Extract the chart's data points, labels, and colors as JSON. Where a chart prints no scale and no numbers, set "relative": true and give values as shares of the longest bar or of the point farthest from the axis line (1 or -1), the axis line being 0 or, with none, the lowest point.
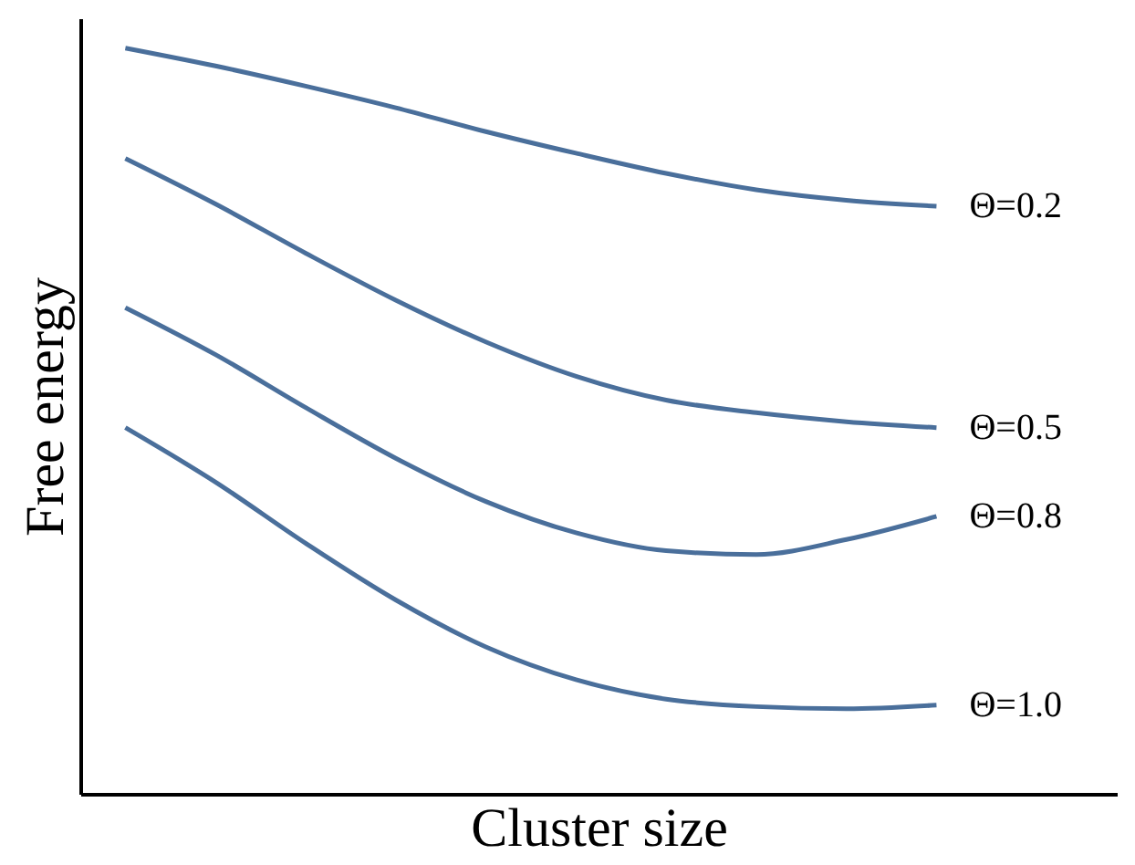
{
  "chart_data": {
    "type": "line",
    "relative": true,
    "xlabel": "Cluster size",
    "ylabel": "Free energy",
    "categories": [
      null,
      null,
      null,
      null,
      null,
      null,
      null,
      null,
      null,
      null
    ],
    "grid": false,
    "marker": "none",
    "line_style": "solid",
    "series": [
      {
        "name": "Θ=0.2",
        "color": "#4a6f9b",
        "values": [
          1,
          0.976,
          0.949,
          0.92,
          0.888,
          0.859,
          0.832,
          0.81,
          0.796,
          0.788
        ]
      },
      {
        "name": "Θ=0.5",
        "color": "#4a6f9b",
        "values": [
          0.852,
          0.791,
          0.725,
          0.662,
          0.606,
          0.56,
          0.528,
          0.511,
          0.499,
          0.491
        ]
      },
      {
        "name": "Θ=0.8",
        "color": "#4a6f9b",
        "values": [
          0.652,
          0.589,
          0.518,
          0.45,
          0.392,
          0.35,
          0.326,
          0.321,
          0.341,
          0.372
        ]
      },
      {
        "name": "Θ=1.0",
        "color": "#4a6f9b",
        "values": [
          0.491,
          0.418,
          0.336,
          0.26,
          0.197,
          0.153,
          0.127,
          0.117,
          0.114,
          0.119
        ]
      }
    ]
  }
}
